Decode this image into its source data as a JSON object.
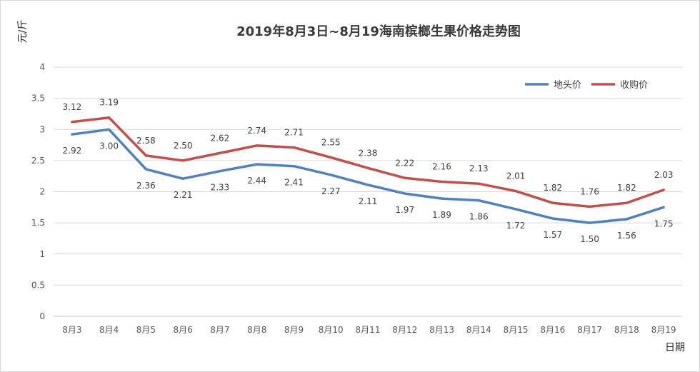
{
  "chart_data": {
    "type": "line",
    "title": "2019年8月3日~8月19海南槟榔生果价格走势图",
    "ylabel": "元/斤",
    "xlabel": "日期",
    "categories": [
      "8月3",
      "8月4",
      "8月5",
      "8月6",
      "8月7",
      "8月8",
      "8月9",
      "8月10",
      "8月11",
      "8月12",
      "8月13",
      "8月14",
      "8月15",
      "8月16",
      "8月17",
      "8月18",
      "8月19"
    ],
    "series": [
      {
        "name": "地头价",
        "color": "#4F81BD",
        "values": [
          2.92,
          3.0,
          2.36,
          2.21,
          2.33,
          2.44,
          2.41,
          2.27,
          2.11,
          1.97,
          1.89,
          1.86,
          1.72,
          1.57,
          1.5,
          1.56,
          1.75
        ],
        "labels": [
          "2.92",
          "3.00",
          "2.36",
          "2.21",
          "2.33",
          "2.44",
          "2.41",
          "2.27",
          "2.11",
          "1.97",
          "1.89",
          "1.86",
          "1.72",
          "1.57",
          "1.50",
          "1.56",
          "1.75"
        ]
      },
      {
        "name": "收购价",
        "color": "#C0504D",
        "values": [
          3.12,
          3.19,
          2.58,
          2.5,
          2.62,
          2.74,
          2.71,
          2.55,
          2.38,
          2.22,
          2.16,
          2.13,
          2.01,
          1.82,
          1.76,
          1.82,
          2.03
        ],
        "labels": [
          "3.12",
          "3.19",
          "2.58",
          "2.50",
          "2.62",
          "2.74",
          "2.71",
          "2.55",
          "2.38",
          "2.22",
          "2.16",
          "2.13",
          "2.01",
          "1.82",
          "1.76",
          "1.82",
          "2.03"
        ]
      }
    ],
    "ylim": [
      0,
      4
    ],
    "yticks": [
      "0",
      "0.5",
      "1",
      "1.5",
      "2",
      "2.5",
      "3",
      "3.5",
      "4"
    ],
    "grid": true,
    "legend": "top-right"
  }
}
